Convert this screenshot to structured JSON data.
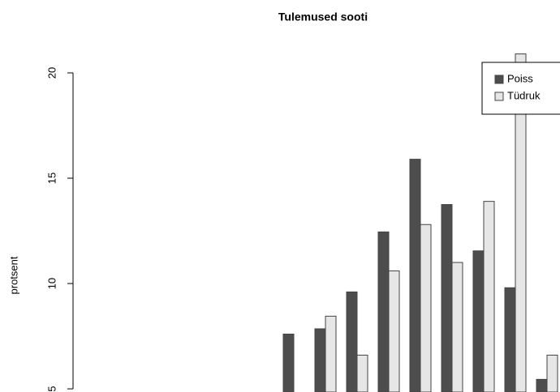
{
  "chart_data": {
    "type": "bar",
    "title": "Tulemused sooti",
    "y_label": "protsent",
    "categories": [
      null,
      null,
      null,
      null,
      null,
      null,
      null,
      null,
      null
    ],
    "series": [
      {
        "name": "Poiss",
        "color": "#4d4d4d",
        "values": [
          7.6,
          7.85,
          9.6,
          12.45,
          15.9,
          13.75,
          11.55,
          9.8,
          5.45
        ]
      },
      {
        "name": "Tüdruk",
        "color": "#e6e6e6",
        "values": [
          null,
          8.45,
          6.6,
          10.6,
          12.8,
          11.0,
          13.9,
          20.9,
          6.6
        ]
      }
    ],
    "ylim": [
      4.85,
      23.46
    ],
    "yticks": [
      5,
      10,
      15,
      20
    ],
    "legend": "top-right"
  }
}
